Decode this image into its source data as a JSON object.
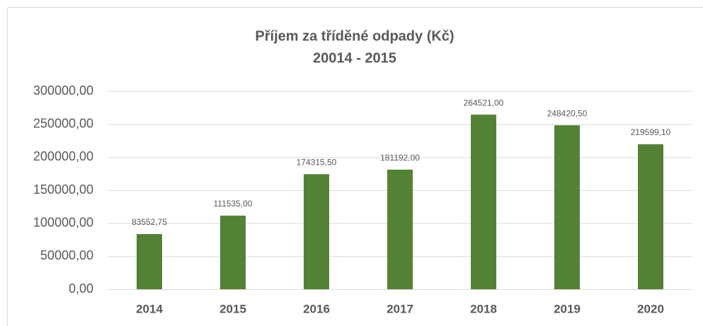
{
  "chart_data": {
    "type": "bar",
    "title": "Příjem za tříděné odpady (Kč)",
    "subtitle": "20014 - 2015",
    "categories": [
      "2014",
      "2015",
      "2016",
      "2017",
      "2018",
      "2019",
      "2020"
    ],
    "values": [
      83552.75,
      111535,
      174315.5,
      181192,
      264521,
      248420.5,
      219599.1
    ],
    "value_labels": [
      "83552,75",
      "111535,00",
      "174315,50",
      "181192,00",
      "264521,00",
      "248420,50",
      "219599,10"
    ],
    "color": "#548235",
    "ylim": [
      0,
      300000
    ],
    "yticks": [
      {
        "value": 0,
        "label": "0,00"
      },
      {
        "value": 50000,
        "label": "50000,00"
      },
      {
        "value": 100000,
        "label": "100000,00"
      },
      {
        "value": 150000,
        "label": "150000,00"
      },
      {
        "value": 200000,
        "label": "200000,00"
      },
      {
        "value": 250000,
        "label": "250000,00"
      },
      {
        "value": 300000,
        "label": "300000,00"
      }
    ],
    "grid": true
  }
}
